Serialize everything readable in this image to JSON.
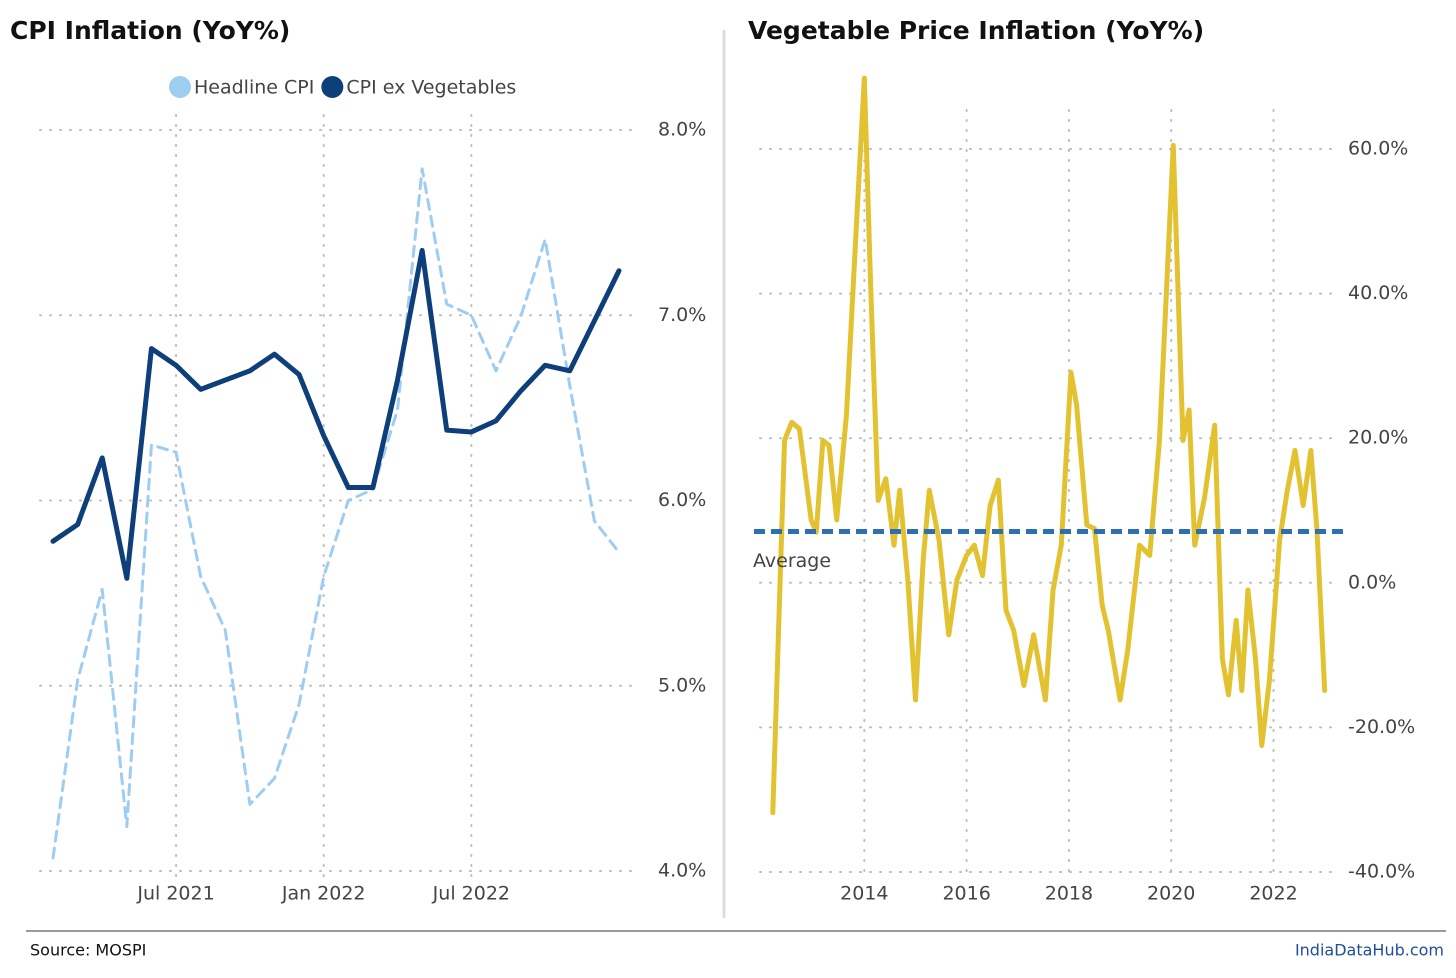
{
  "chart_data": [
    {
      "type": "line",
      "title": "CPI Inflation (YoY%)",
      "categories": [
        null,
        null,
        null,
        null,
        null,
        "Jul 2021",
        null,
        null,
        null,
        null,
        null,
        "Jan 2022",
        null,
        null,
        null,
        null,
        null,
        "Jul 2022",
        null,
        null,
        null,
        null,
        null,
        null
      ],
      "series": [
        {
          "name": "Headline CPI",
          "color": "#9ecdf2",
          "dashed": true,
          "values": [
            4.07,
            5.03,
            5.52,
            4.24,
            6.3,
            6.26,
            5.59,
            5.3,
            4.36,
            4.5,
            4.9,
            5.59,
            6.0,
            6.06,
            6.49,
            7.79,
            7.06,
            7.0,
            6.7,
            6.99,
            7.41,
            6.62,
            5.89,
            5.72
          ]
        },
        {
          "name": "CPI ex Vegetables",
          "color": "#0e3f7a",
          "dashed": false,
          "values": [
            5.78,
            5.87,
            6.23,
            5.58,
            6.82,
            6.73,
            6.6,
            6.65,
            6.7,
            6.79,
            6.68,
            6.35,
            6.07,
            6.07,
            6.65,
            7.35,
            6.38,
            6.37,
            6.43,
            6.59,
            6.73,
            6.7,
            6.97,
            7.24
          ]
        }
      ],
      "ylim": [
        4.0,
        8.0
      ],
      "yticks": [
        {
          "value": 4.0,
          "label": "4.0%"
        },
        {
          "value": 5.0,
          "label": "5.0%"
        },
        {
          "value": 6.0,
          "label": "6.0%"
        },
        {
          "value": 7.0,
          "label": "7.0%"
        },
        {
          "value": 8.0,
          "label": "8.0%"
        }
      ],
      "grid": true,
      "legend": "top"
    },
    {
      "type": "line",
      "title": "Vegetable Price Inflation (YoY%)",
      "x": [
        2012.21,
        2012.44,
        2012.58,
        2012.73,
        2012.96,
        2013.06,
        2013.19,
        2013.31,
        2013.46,
        2013.65,
        2013.85,
        2014.0,
        2014.12,
        2014.27,
        2014.42,
        2014.58,
        2014.69,
        2014.85,
        2015.0,
        2015.15,
        2015.27,
        2015.46,
        2015.65,
        2015.81,
        2016.0,
        2016.15,
        2016.31,
        2016.46,
        2016.62,
        2016.77,
        2016.92,
        2017.12,
        2017.31,
        2017.54,
        2017.69,
        2017.85,
        2018.04,
        2018.15,
        2018.35,
        2018.5,
        2018.65,
        2018.77,
        2019.0,
        2019.15,
        2019.38,
        2019.58,
        2019.77,
        2020.04,
        2020.23,
        2020.35,
        2020.46,
        2020.65,
        2020.85,
        2021.0,
        2021.12,
        2021.27,
        2021.38,
        2021.5,
        2021.65,
        2021.77,
        2021.92,
        2022.12,
        2022.27,
        2022.42,
        2022.58,
        2022.73,
        2022.85,
        2023.0
      ],
      "values": [
        -31.8,
        19.7,
        22.2,
        21.3,
        8.7,
        7.0,
        19.7,
        19.0,
        8.7,
        23.2,
        50.1,
        69.8,
        41.8,
        11.4,
        14.4,
        5.2,
        12.8,
        0.4,
        -16.2,
        3.1,
        12.8,
        5.9,
        -7.2,
        0.4,
        3.8,
        5.2,
        1.0,
        10.7,
        14.2,
        -3.8,
        -6.6,
        -14.2,
        -7.2,
        -16.2,
        -1.0,
        5.2,
        29.1,
        24.6,
        8.0,
        7.5,
        -3.1,
        -6.6,
        -16.2,
        -9.3,
        5.2,
        3.8,
        19.7,
        60.5,
        19.7,
        23.9,
        5.2,
        11.7,
        21.8,
        -10.5,
        -15.5,
        -5.2,
        -14.9,
        -1.0,
        -10.7,
        -22.5,
        -13.5,
        5.9,
        12.8,
        18.3,
        10.7,
        18.3,
        7.3,
        -14.9
      ],
      "color": "#e3c232",
      "average": {
        "label": "Average",
        "value": 7.1,
        "color": "#2e6fb0"
      },
      "xlim": [
        2011.96,
        2023.3
      ],
      "xticks": [
        2014,
        2016,
        2018,
        2020,
        2022
      ],
      "ylim": [
        -40,
        60
      ],
      "yticks": [
        {
          "value": -40,
          "label": "-40.0%"
        },
        {
          "value": -20,
          "label": "-20.0%"
        },
        {
          "value": 0,
          "label": "0.0%"
        },
        {
          "value": 20,
          "label": "20.0%"
        },
        {
          "value": 40,
          "label": "40.0%"
        },
        {
          "value": 60,
          "label": "60.0%"
        }
      ],
      "grid": true
    }
  ],
  "footer": {
    "source": "Source: MOSPI",
    "brand": "IndiaDataHub.com"
  }
}
